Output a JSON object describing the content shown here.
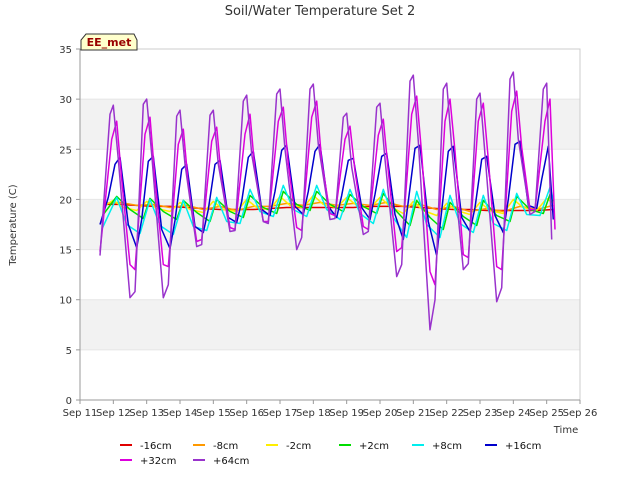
{
  "chart_data": {
    "type": "line",
    "title": "Soil/Water Temperature Set 2",
    "xlabel": "Time",
    "ylabel": "Temperature (C)",
    "site_badge": "EE_met",
    "ylim": [
      0,
      35
    ],
    "yticks": [
      "0",
      "5",
      "10",
      "15",
      "20",
      "25",
      "30",
      "35"
    ],
    "xlim": [
      11,
      26
    ],
    "xtick_labels": [
      "Sep 11",
      "Sep 12",
      "Sep 13",
      "Sep 14",
      "Sep 15",
      "Sep 16",
      "Sep 17",
      "Sep 18",
      "Sep 19",
      "Sep 20",
      "Sep 21",
      "Sep 22",
      "Sep 23",
      "Sep 24",
      "Sep 25",
      "Sep 26"
    ],
    "grid_bands": true,
    "legend_placement": "bottom",
    "series": [
      {
        "name": "-16cm",
        "color": "#e00000",
        "x": [
          11.7,
          12.2,
          12.7,
          13.2,
          13.7,
          14.2,
          14.7,
          15.2,
          15.7,
          16.2,
          16.7,
          17.2,
          17.7,
          18.2,
          18.7,
          19.2,
          19.7,
          20.2,
          20.7,
          21.2,
          21.7,
          22.2,
          22.7,
          23.2,
          23.7,
          24.2,
          24.7,
          25.2
        ],
        "values": [
          19.5,
          19.5,
          19.4,
          19.3,
          19.3,
          19.2,
          19.1,
          19.0,
          19.0,
          19.0,
          19.1,
          19.2,
          19.2,
          19.2,
          19.2,
          19.2,
          19.3,
          19.3,
          19.3,
          19.2,
          19.1,
          19.0,
          19.0,
          18.9,
          18.9,
          18.9,
          18.9,
          19.0
        ]
      },
      {
        "name": "-8cm",
        "color": "#ff9900",
        "x": [
          11.7,
          12.2,
          12.7,
          13.2,
          13.7,
          14.2,
          14.7,
          15.2,
          15.7,
          16.2,
          16.7,
          17.2,
          17.7,
          18.2,
          18.7,
          19.2,
          19.7,
          20.2,
          20.7,
          21.2,
          21.7,
          22.2,
          22.7,
          23.2,
          23.7,
          24.2,
          24.7,
          25.2
        ],
        "values": [
          19.6,
          19.7,
          19.4,
          19.5,
          19.2,
          19.4,
          19.0,
          19.3,
          18.9,
          19.3,
          19.3,
          19.6,
          19.4,
          19.7,
          19.4,
          19.6,
          19.4,
          19.7,
          19.3,
          19.5,
          19.0,
          19.3,
          18.8,
          19.1,
          18.8,
          19.3,
          19.0,
          19.4
        ]
      },
      {
        "name": "-2cm",
        "color": "#ffee00",
        "x": [
          11.7,
          12.0,
          12.3,
          12.7,
          13.0,
          13.3,
          13.7,
          14.0,
          14.3,
          14.7,
          15.0,
          15.3,
          15.7,
          16.0,
          16.3,
          16.7,
          17.0,
          17.3,
          17.7,
          18.0,
          18.3,
          18.7,
          19.0,
          19.3,
          19.7,
          20.0,
          20.3,
          20.7,
          21.0,
          21.3,
          21.7,
          22.0,
          22.3,
          22.7,
          23.0,
          23.3,
          23.7,
          24.0,
          24.3,
          24.7,
          25.0,
          25.2
        ],
        "values": [
          19.3,
          19.9,
          19.2,
          18.9,
          19.8,
          19.1,
          18.8,
          19.7,
          19.0,
          18.7,
          19.8,
          19.0,
          18.8,
          20.0,
          19.2,
          19.0,
          20.3,
          19.4,
          19.2,
          20.4,
          19.5,
          19.2,
          20.2,
          19.4,
          19.1,
          20.2,
          19.3,
          18.6,
          19.8,
          18.9,
          18.4,
          19.6,
          18.9,
          18.5,
          19.7,
          18.9,
          18.6,
          20.0,
          19.2,
          18.9,
          20.1,
          19.6
        ]
      },
      {
        "name": "+2cm",
        "color": "#00dd00",
        "x": [
          11.7,
          12.1,
          12.5,
          12.9,
          13.1,
          13.5,
          13.9,
          14.1,
          14.5,
          14.9,
          15.1,
          15.5,
          15.9,
          16.1,
          16.5,
          16.9,
          17.1,
          17.5,
          17.9,
          18.1,
          18.5,
          18.9,
          19.1,
          19.5,
          19.9,
          20.1,
          20.5,
          20.9,
          21.1,
          21.5,
          21.9,
          22.1,
          22.5,
          22.9,
          23.1,
          23.5,
          23.9,
          24.1,
          24.5,
          24.9,
          25.1,
          25.2
        ],
        "values": [
          18.5,
          20.3,
          19.0,
          18.1,
          20.1,
          18.8,
          18.0,
          19.9,
          18.7,
          17.8,
          20.0,
          18.8,
          18.2,
          20.4,
          19.2,
          18.6,
          20.8,
          19.5,
          18.9,
          20.8,
          19.5,
          18.8,
          20.5,
          19.3,
          18.6,
          20.6,
          18.8,
          17.4,
          19.9,
          18.2,
          17.0,
          19.7,
          18.3,
          17.4,
          19.9,
          18.4,
          17.8,
          20.3,
          19.0,
          18.6,
          20.5,
          19.8
        ]
      },
      {
        "name": "+8cm",
        "color": "#00eeee",
        "x": [
          11.65,
          12.1,
          12.4,
          12.8,
          13.1,
          13.4,
          13.8,
          14.1,
          14.4,
          14.8,
          15.1,
          15.4,
          15.8,
          16.1,
          16.4,
          16.8,
          17.1,
          17.4,
          17.8,
          18.1,
          18.4,
          18.8,
          19.1,
          19.4,
          19.8,
          20.1,
          20.4,
          20.8,
          21.1,
          21.4,
          21.8,
          22.1,
          22.4,
          22.8,
          23.1,
          23.4,
          23.8,
          24.1,
          24.4,
          24.8,
          25.1,
          25.2
        ],
        "values": [
          17.0,
          20.2,
          17.5,
          16.6,
          20.0,
          17.4,
          16.5,
          19.9,
          17.3,
          16.9,
          20.2,
          17.8,
          17.6,
          21.0,
          18.8,
          18.3,
          21.4,
          19.0,
          18.3,
          21.4,
          19.0,
          18.0,
          21.0,
          18.6,
          17.6,
          21.0,
          18.2,
          16.2,
          20.8,
          17.5,
          16.2,
          20.4,
          17.6,
          16.7,
          20.4,
          17.6,
          16.9,
          20.6,
          18.5,
          18.4,
          21.2,
          20.0
        ]
      },
      {
        "name": "+16cm",
        "color": "#0000cc",
        "x": [
          11.6,
          11.85,
          12.05,
          12.2,
          12.45,
          12.7,
          12.85,
          13.05,
          13.2,
          13.45,
          13.7,
          13.85,
          14.05,
          14.2,
          14.45,
          14.7,
          14.85,
          15.05,
          15.2,
          15.45,
          15.7,
          15.85,
          16.05,
          16.2,
          16.45,
          16.7,
          16.85,
          17.05,
          17.2,
          17.45,
          17.7,
          17.85,
          18.05,
          18.2,
          18.45,
          18.7,
          18.85,
          19.05,
          19.2,
          19.45,
          19.7,
          19.85,
          20.05,
          20.2,
          20.45,
          20.7,
          20.85,
          21.05,
          21.2,
          21.45,
          21.7,
          21.85,
          22.05,
          22.2,
          22.45,
          22.7,
          22.85,
          23.05,
          23.2,
          23.45,
          23.7,
          23.85,
          24.05,
          24.2,
          24.45,
          24.7,
          24.85,
          25.05,
          25.2
        ],
        "values": [
          17.5,
          20.2,
          23.5,
          24.2,
          17.5,
          15.2,
          18.0,
          23.8,
          24.3,
          17.0,
          15.1,
          17.9,
          23.0,
          23.5,
          17.3,
          16.7,
          19.0,
          23.5,
          23.9,
          18.2,
          17.7,
          19.8,
          24.2,
          24.8,
          19.0,
          18.4,
          20.8,
          24.9,
          25.4,
          19.3,
          18.5,
          20.8,
          24.8,
          25.5,
          19.3,
          18.2,
          20.4,
          23.9,
          24.1,
          19.2,
          18.0,
          20.5,
          24.3,
          24.6,
          18.5,
          16.0,
          19.8,
          25.1,
          25.4,
          17.8,
          14.4,
          18.9,
          24.8,
          25.3,
          18.2,
          16.8,
          19.2,
          24.0,
          24.3,
          18.4,
          16.7,
          20.0,
          25.5,
          25.8,
          19.4,
          19.1,
          22.0,
          25.3,
          18.0
        ]
      },
      {
        "name": "+32cm",
        "color": "#dd00dd",
        "x": [
          11.6,
          11.95,
          12.1,
          12.25,
          12.5,
          12.65,
          12.95,
          13.1,
          13.25,
          13.5,
          13.65,
          13.95,
          14.1,
          14.25,
          14.5,
          14.65,
          14.95,
          15.1,
          15.25,
          15.5,
          15.65,
          15.95,
          16.1,
          16.25,
          16.5,
          16.65,
          16.95,
          17.1,
          17.25,
          17.5,
          17.65,
          17.95,
          18.1,
          18.25,
          18.5,
          18.65,
          18.95,
          19.1,
          19.25,
          19.5,
          19.65,
          19.95,
          20.1,
          20.25,
          20.5,
          20.65,
          20.95,
          21.1,
          21.25,
          21.5,
          21.65,
          21.95,
          22.1,
          22.25,
          22.5,
          22.65,
          22.95,
          23.1,
          23.25,
          23.5,
          23.65,
          23.95,
          24.1,
          24.25,
          24.5,
          24.65,
          24.95,
          25.1,
          25.25
        ],
        "values": [
          14.8,
          26.0,
          27.8,
          22.0,
          13.5,
          13.0,
          26.5,
          28.2,
          22.0,
          13.5,
          13.3,
          25.5,
          27.0,
          21.5,
          15.8,
          16.0,
          25.8,
          27.2,
          21.8,
          17.2,
          17.0,
          26.5,
          28.5,
          22.8,
          17.8,
          17.8,
          27.8,
          29.2,
          23.5,
          17.2,
          16.9,
          28.2,
          29.8,
          23.8,
          18.6,
          18.4,
          26.0,
          27.3,
          22.8,
          17.3,
          17.0,
          26.4,
          28.0,
          22.8,
          14.8,
          15.2,
          28.5,
          30.3,
          24.5,
          12.8,
          11.5,
          27.8,
          30.0,
          24.8,
          14.5,
          14.2,
          27.8,
          29.6,
          24.0,
          13.3,
          13.0,
          28.8,
          30.8,
          25.2,
          19.0,
          19.0,
          27.8,
          30.0,
          17.0
        ]
      },
      {
        "name": "+64cm",
        "color": "#9933cc",
        "x": [
          11.6,
          11.9,
          12.0,
          12.15,
          12.5,
          12.65,
          12.9,
          13.0,
          13.15,
          13.5,
          13.65,
          13.9,
          14.0,
          14.15,
          14.5,
          14.65,
          14.9,
          15.0,
          15.15,
          15.5,
          15.65,
          15.9,
          16.0,
          16.15,
          16.5,
          16.65,
          16.9,
          17.0,
          17.15,
          17.5,
          17.65,
          17.9,
          18.0,
          18.15,
          18.5,
          18.65,
          18.9,
          19.0,
          19.15,
          19.5,
          19.65,
          19.9,
          20.0,
          20.15,
          20.5,
          20.65,
          20.9,
          21.0,
          21.15,
          21.5,
          21.65,
          21.9,
          22.0,
          22.15,
          22.5,
          22.65,
          22.9,
          23.0,
          23.15,
          23.5,
          23.65,
          23.9,
          24.0,
          24.15,
          24.5,
          24.65,
          24.9,
          25.0,
          25.15
        ],
        "values": [
          14.4,
          28.5,
          29.4,
          24.0,
          10.2,
          10.8,
          29.5,
          30.0,
          24.5,
          10.2,
          11.5,
          28.3,
          28.9,
          23.5,
          15.3,
          15.5,
          28.4,
          28.9,
          23.5,
          16.8,
          16.9,
          29.8,
          30.4,
          24.5,
          17.8,
          17.6,
          30.5,
          31.0,
          25.0,
          15.0,
          16.2,
          31.0,
          31.5,
          25.5,
          18.0,
          18.1,
          28.2,
          28.6,
          23.2,
          16.5,
          16.8,
          29.2,
          29.6,
          24.0,
          12.3,
          13.5,
          31.8,
          32.4,
          25.8,
          7.0,
          10.0,
          31.0,
          31.6,
          25.2,
          13.0,
          13.6,
          30.0,
          30.6,
          24.5,
          9.8,
          11.2,
          32.0,
          32.7,
          26.0,
          18.5,
          18.8,
          31.0,
          31.6,
          16.0
        ]
      }
    ]
  }
}
